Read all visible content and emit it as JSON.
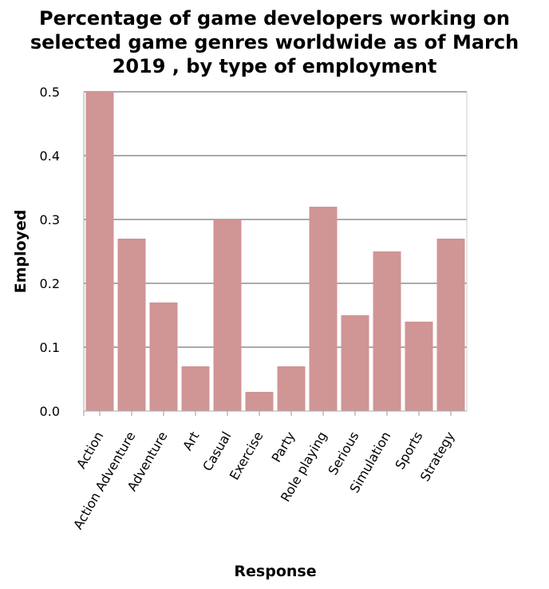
{
  "chart_data": {
    "type": "bar",
    "title_lines": [
      "Percentage of game developers working on",
      "selected game genres worldwide as of March",
      "2019 , by type of employment"
    ],
    "xlabel": "Response",
    "ylabel": "Employed",
    "categories": [
      "Action",
      "Action Adventure",
      "Adventure",
      "Art",
      "Casual",
      "Exercise",
      "Party",
      "Role playing",
      "Serious",
      "Simulation",
      "Sports",
      "Strategy"
    ],
    "values": [
      0.5,
      0.27,
      0.17,
      0.07,
      0.3,
      0.03,
      0.07,
      0.32,
      0.15,
      0.25,
      0.14,
      0.27
    ],
    "yticks": [
      "0.0",
      "0.1",
      "0.2",
      "0.3",
      "0.4",
      "0.5"
    ],
    "ylim": [
      0,
      0.5
    ],
    "grid": true,
    "bar_color": "#d09595"
  }
}
